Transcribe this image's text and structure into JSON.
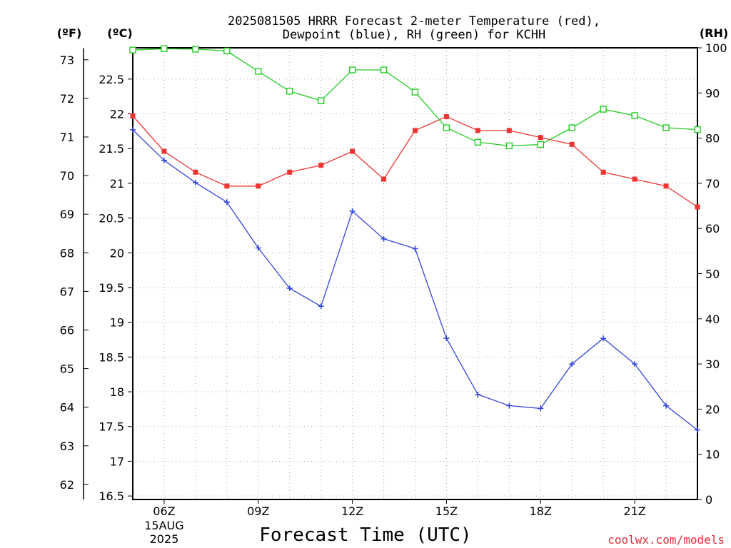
{
  "chart_data": {
    "type": "line",
    "title_lines": [
      "2025081505 HRRR Forecast 2-meter Temperature (red),",
      "Dewpoint (blue), RH (green) for KCHH"
    ],
    "xlabel": "Forecast Time (UTC)",
    "credit": "coolwx.com/models",
    "unit_labels": {
      "fahrenheit": "(ºF)",
      "celsius": "(ºC)",
      "rh": "(RH)"
    },
    "x": [
      "05Z",
      "06Z",
      "07Z",
      "08Z",
      "09Z",
      "10Z",
      "11Z",
      "12Z",
      "13Z",
      "14Z",
      "15Z",
      "16Z",
      "17Z",
      "18Z",
      "19Z",
      "20Z",
      "21Z",
      "22Z",
      "23Z"
    ],
    "x_tick_labels": [
      {
        "hour": "06Z",
        "date": "15AUG",
        "year": "2025"
      },
      {
        "hour": "09Z"
      },
      {
        "hour": "12Z"
      },
      {
        "hour": "15Z"
      },
      {
        "hour": "18Z"
      },
      {
        "hour": "21Z"
      }
    ],
    "celsius_axis": {
      "range": [
        16.45,
        22.95
      ],
      "ticks": [
        "16.5",
        "17",
        "17.5",
        "18",
        "18.5",
        "19",
        "19.5",
        "20",
        "20.5",
        "21",
        "21.5",
        "22",
        "22.5"
      ]
    },
    "fahrenheit_axis": {
      "ticks": [
        "62",
        "63",
        "64",
        "65",
        "66",
        "67",
        "68",
        "69",
        "70",
        "71",
        "72",
        "73"
      ]
    },
    "rh_axis": {
      "range": [
        0,
        100
      ],
      "ticks": [
        "0",
        "10",
        "20",
        "30",
        "40",
        "50",
        "60",
        "70",
        "80",
        "90",
        "100"
      ]
    },
    "grid": true,
    "series": [
      {
        "axis": "celsius",
        "color": "#ee3333",
        "marker": "filled-square",
        "values": [
          21.97,
          21.46,
          21.16,
          20.96,
          20.96,
          21.16,
          21.26,
          21.46,
          21.06,
          21.76,
          21.96,
          21.76,
          21.76,
          21.66,
          21.56,
          21.16,
          21.06,
          20.96,
          20.66
        ]
      },
      {
        "axis": "celsius",
        "color": "#3344dd",
        "marker": "plus",
        "values": [
          21.77,
          21.33,
          21.01,
          20.73,
          20.07,
          19.49,
          19.23,
          20.6,
          20.2,
          20.06,
          18.77,
          17.96,
          17.8,
          17.76,
          18.4,
          18.77,
          18.4,
          17.8,
          17.45
        ]
      },
      {
        "axis": "rh",
        "color": "#22cc22",
        "marker": "open-square",
        "values": [
          99.5,
          99.8,
          99.7,
          99.3,
          94.8,
          90.4,
          88.3,
          95.1,
          95.1,
          90.2,
          82.3,
          79.1,
          78.3,
          78.6,
          82.3,
          86.4,
          85.0,
          82.3,
          81.9
        ]
      }
    ]
  }
}
